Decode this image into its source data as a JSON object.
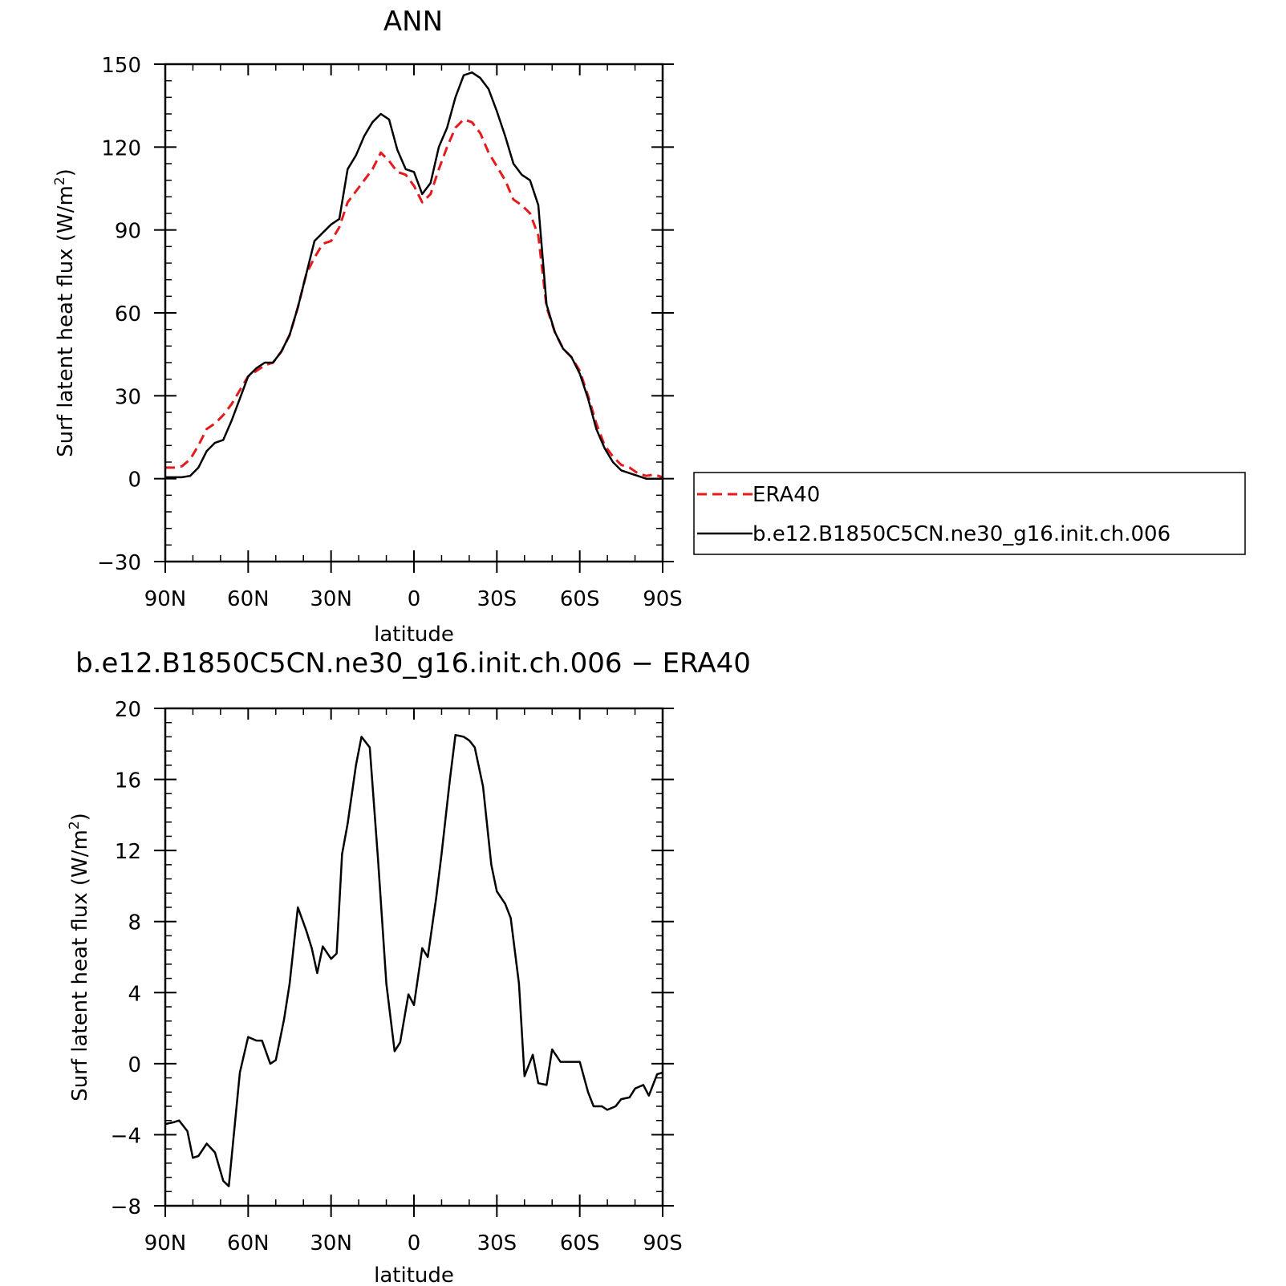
{
  "chart_data": [
    {
      "type": "line",
      "title": "ANN",
      "xlabel": "latitude",
      "ylabel": "Surf latent heat flux (W/m",
      "ylabel_sup": "2",
      "ylabel_close": ")",
      "xlim": [
        90,
        -90
      ],
      "ylim": [
        -30,
        150
      ],
      "xticks": [
        90,
        60,
        30,
        0,
        -30,
        -60,
        -90
      ],
      "xtick_labels": [
        "90N",
        "60N",
        "30N",
        "0",
        "30S",
        "60S",
        "90S"
      ],
      "yticks": [
        -30,
        0,
        30,
        60,
        90,
        120,
        150
      ],
      "ytick_labels": [
        "−30",
        "0",
        "30",
        "60",
        "90",
        "120",
        "150"
      ],
      "grid": false,
      "legend": "right",
      "series": [
        {
          "name": "ERA40",
          "color": "#e41a1c",
          "dash": "dashed",
          "points": [
            [
              90,
              4
            ],
            [
              87,
              4
            ],
            [
              84,
              4.5
            ],
            [
              81,
              7
            ],
            [
              78,
              12
            ],
            [
              75,
              18
            ],
            [
              72,
              20
            ],
            [
              69,
              23
            ],
            [
              66,
              27
            ],
            [
              63,
              32
            ],
            [
              60,
              37
            ],
            [
              57,
              39
            ],
            [
              54,
              41
            ],
            [
              51,
              42
            ],
            [
              48,
              46
            ],
            [
              45,
              52
            ],
            [
              42,
              62
            ],
            [
              39,
              74
            ],
            [
              36,
              80
            ],
            [
              33,
              85
            ],
            [
              30,
              86
            ],
            [
              27,
              91
            ],
            [
              24,
              100
            ],
            [
              21,
              104
            ],
            [
              18,
              108
            ],
            [
              15,
              112
            ],
            [
              12,
              118
            ],
            [
              9,
              115
            ],
            [
              6,
              111
            ],
            [
              3,
              110
            ],
            [
              0,
              106
            ],
            [
              -3,
              100
            ],
            [
              -6,
              103
            ],
            [
              -9,
              112
            ],
            [
              -12,
              120
            ],
            [
              -15,
              127
            ],
            [
              -18,
              130
            ],
            [
              -21,
              129
            ],
            [
              -24,
              125
            ],
            [
              -27,
              118
            ],
            [
              -30,
              113
            ],
            [
              -33,
              108
            ],
            [
              -36,
              101
            ],
            [
              -39,
              99
            ],
            [
              -42,
              96
            ],
            [
              -45,
              88
            ],
            [
              -48,
              62
            ],
            [
              -51,
              53
            ],
            [
              -54,
              47
            ],
            [
              -57,
              44
            ],
            [
              -60,
              39
            ],
            [
              -63,
              30
            ],
            [
              -66,
              20
            ],
            [
              -69,
              12
            ],
            [
              -72,
              8
            ],
            [
              -75,
              5
            ],
            [
              -78,
              4
            ],
            [
              -81,
              2
            ],
            [
              -84,
              1
            ],
            [
              -87,
              1.5
            ],
            [
              -90,
              0.5
            ]
          ]
        },
        {
          "name": "b.e12.B1850C5CN.ne30_g16.init.ch.006",
          "color": "#000000",
          "dash": "solid",
          "points": [
            [
              90,
              0.5
            ],
            [
              87,
              0.5
            ],
            [
              84,
              0.5
            ],
            [
              81,
              1
            ],
            [
              78,
              4
            ],
            [
              75,
              10
            ],
            [
              72,
              13
            ],
            [
              69,
              14
            ],
            [
              66,
              21
            ],
            [
              63,
              29
            ],
            [
              60,
              37
            ],
            [
              57,
              40
            ],
            [
              54,
              42
            ],
            [
              51,
              42
            ],
            [
              48,
              46
            ],
            [
              45,
              52
            ],
            [
              42,
              62
            ],
            [
              39,
              74
            ],
            [
              36,
              86
            ],
            [
              33,
              89
            ],
            [
              30,
              92
            ],
            [
              27,
              94
            ],
            [
              24,
              112
            ],
            [
              21,
              117
            ],
            [
              18,
              124
            ],
            [
              15,
              129
            ],
            [
              12,
              132
            ],
            [
              9,
              130
            ],
            [
              6,
              119
            ],
            [
              3,
              112
            ],
            [
              0,
              111
            ],
            [
              -3,
              103
            ],
            [
              -6,
              107
            ],
            [
              -9,
              120
            ],
            [
              -12,
              127
            ],
            [
              -15,
              138
            ],
            [
              -18,
              146
            ],
            [
              -21,
              147
            ],
            [
              -24,
              145
            ],
            [
              -27,
              141
            ],
            [
              -30,
              133
            ],
            [
              -33,
              124
            ],
            [
              -36,
              114
            ],
            [
              -39,
              110
            ],
            [
              -42,
              108
            ],
            [
              -45,
              99
            ],
            [
              -48,
              63
            ],
            [
              -51,
              53
            ],
            [
              -54,
              47
            ],
            [
              -57,
              44
            ],
            [
              -60,
              38
            ],
            [
              -63,
              29
            ],
            [
              -66,
              18
            ],
            [
              -69,
              11
            ],
            [
              -72,
              6
            ],
            [
              -75,
              3
            ],
            [
              -78,
              2
            ],
            [
              -81,
              1
            ],
            [
              -84,
              0
            ],
            [
              -87,
              0
            ],
            [
              -90,
              0
            ]
          ]
        }
      ]
    },
    {
      "type": "line",
      "title": "b.e12.B1850C5CN.ne30_g16.init.ch.006 − ERA40",
      "xlabel": "latitude",
      "ylabel": "Surf latent heat flux (W/m",
      "ylabel_sup": "2",
      "ylabel_close": ")",
      "xlim": [
        90,
        -90
      ],
      "ylim": [
        -8,
        20
      ],
      "xticks": [
        90,
        60,
        30,
        0,
        -30,
        -60,
        -90
      ],
      "xtick_labels": [
        "90N",
        "60N",
        "30N",
        "0",
        "30S",
        "60S",
        "90S"
      ],
      "yticks": [
        -8,
        -4,
        0,
        4,
        8,
        12,
        16,
        20
      ],
      "ytick_labels": [
        "−8",
        "−4",
        "0",
        "4",
        "8",
        "12",
        "16",
        "20"
      ],
      "grid": false,
      "series": [
        {
          "color": "#000000",
          "dash": "solid",
          "points": [
            [
              90,
              -3.4
            ],
            [
              87,
              -3.3
            ],
            [
              85,
              -3.2
            ],
            [
              82,
              -3.8
            ],
            [
              80,
              -5.3
            ],
            [
              78,
              -5.2
            ],
            [
              75,
              -4.5
            ],
            [
              72,
              -5
            ],
            [
              69,
              -6.6
            ],
            [
              67,
              -6.9
            ],
            [
              63,
              -0.5
            ],
            [
              60,
              1.5
            ],
            [
              57,
              1.3
            ],
            [
              55,
              1.3
            ],
            [
              52,
              0
            ],
            [
              50,
              0.2
            ],
            [
              47,
              2.5
            ],
            [
              45,
              4.5
            ],
            [
              42,
              8.8
            ],
            [
              39,
              7.5
            ],
            [
              37,
              6.5
            ],
            [
              35,
              5.1
            ],
            [
              33,
              6.6
            ],
            [
              30,
              5.9
            ],
            [
              28,
              6.2
            ],
            [
              26,
              11.8
            ],
            [
              24,
              13.5
            ],
            [
              21,
              16.8
            ],
            [
              19,
              18.4
            ],
            [
              16,
              17.8
            ],
            [
              13,
              11.5
            ],
            [
              10,
              4.5
            ],
            [
              7,
              0.7
            ],
            [
              5,
              1.2
            ],
            [
              2,
              3.9
            ],
            [
              0,
              3.3
            ],
            [
              -3,
              6.5
            ],
            [
              -5,
              6
            ],
            [
              -8,
              9.3
            ],
            [
              -10,
              11.8
            ],
            [
              -13,
              16
            ],
            [
              -15,
              18.5
            ],
            [
              -18,
              18.4
            ],
            [
              -20,
              18.2
            ],
            [
              -22,
              17.8
            ],
            [
              -25,
              15.6
            ],
            [
              -28,
              11.2
            ],
            [
              -30,
              9.7
            ],
            [
              -33,
              9
            ],
            [
              -35,
              8.2
            ],
            [
              -38,
              4.5
            ],
            [
              -40,
              -0.7
            ],
            [
              -43,
              0.5
            ],
            [
              -45,
              -1.1
            ],
            [
              -48,
              -1.2
            ],
            [
              -50,
              0.8
            ],
            [
              -53,
              0.1
            ],
            [
              -55,
              0.1
            ],
            [
              -58,
              0.1
            ],
            [
              -60,
              0.1
            ],
            [
              -63,
              -1.6
            ],
            [
              -65,
              -2.4
            ],
            [
              -68,
              -2.4
            ],
            [
              -70,
              -2.6
            ],
            [
              -73,
              -2.4
            ],
            [
              -75,
              -2
            ],
            [
              -78,
              -1.9
            ],
            [
              -80,
              -1.4
            ],
            [
              -83,
              -1.2
            ],
            [
              -85,
              -1.8
            ],
            [
              -88,
              -0.6
            ],
            [
              -90,
              -0.5
            ]
          ]
        }
      ]
    }
  ]
}
